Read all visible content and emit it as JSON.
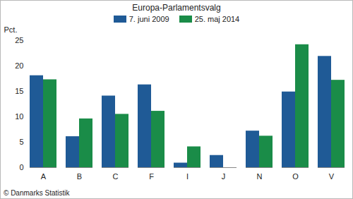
{
  "chart_data": {
    "type": "bar",
    "title": "Europa-Parlamentsvalg",
    "ylabel": "Pct.",
    "source": "© Danmarks Statistik",
    "categories": [
      "A",
      "B",
      "C",
      "F",
      "I",
      "J",
      "N",
      "O",
      "V"
    ],
    "series": [
      {
        "name": "7. juni 2009",
        "color": "#1f5a96",
        "values": [
          18.1,
          6.1,
          14.1,
          16.3,
          0.9,
          2.4,
          7.2,
          14.9,
          21.9
        ]
      },
      {
        "name": "25. maj 2014",
        "color": "#1a8c48",
        "values": [
          17.3,
          9.6,
          10.5,
          11.1,
          4.1,
          null,
          6.2,
          24.2,
          17.2
        ]
      }
    ],
    "ylim": [
      0,
      25
    ],
    "yticks": [
      0,
      5,
      10,
      15,
      20,
      25
    ],
    "grid": false,
    "legend": "top"
  }
}
